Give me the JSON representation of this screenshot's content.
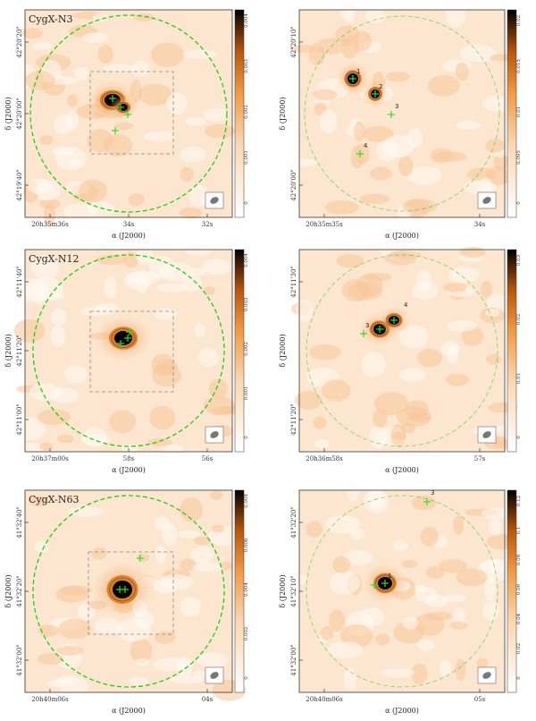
{
  "figure": {
    "panels": [
      {
        "id": "n3-left",
        "title": "CygX-N3",
        "ylabel": "δ (J2000)",
        "xlabel": "α (J2000)",
        "xticks": [
          "20h35m36s",
          "34s",
          "32s"
        ],
        "yticks": [
          "42°20'20\"",
          "42°20'00\"",
          "42°19'40\""
        ],
        "cbar_ticks": [
          "0.004",
          "0.003",
          "0.002",
          "0.001",
          "0"
        ],
        "sources": [],
        "has_box": true,
        "circle_style": "bold"
      },
      {
        "id": "n3-right",
        "title": "",
        "ylabel": "δ (J2000)",
        "xlabel": "α (J2000)",
        "xticks": [
          "20h35m35s",
          "34s"
        ],
        "yticks": [
          "42°20'10\"",
          "42°20'00\""
        ],
        "cbar_ticks": [
          "0.02",
          "0.015",
          "0.01",
          "0.005",
          "0"
        ],
        "sources": [
          "1",
          "2",
          "3",
          "4"
        ],
        "has_box": false,
        "circle_style": "light"
      },
      {
        "id": "n12-left",
        "title": "CygX-N12",
        "ylabel": "δ (J2000)",
        "xlabel": "α (J2000)",
        "xticks": [
          "20h37m00s",
          "58s",
          "56s"
        ],
        "yticks": [
          "42°11'40\"",
          "42°11'20\"",
          "42°11'00\""
        ],
        "cbar_ticks": [
          "0.004",
          "0.003",
          "0.002",
          "0.001",
          "0"
        ],
        "sources": [],
        "has_box": true,
        "circle_style": "bold"
      },
      {
        "id": "n12-right",
        "title": "",
        "ylabel": "δ (J2000)",
        "xlabel": "α (J2000)",
        "xticks": [
          "20h36m58s",
          "57s"
        ],
        "yticks": [
          "42°11'30\"",
          "42°11'20\""
        ],
        "cbar_ticks": [
          "0.03",
          "0.02",
          "0.01",
          "0"
        ],
        "sources": [
          "3",
          "4"
        ],
        "has_box": false,
        "circle_style": "light"
      },
      {
        "id": "n63-left",
        "title": "CygX-N63",
        "ylabel": "δ (J2000)",
        "xlabel": "α (J2000)",
        "xticks": [
          "20h40m06s",
          "04s"
        ],
        "yticks": [
          "41°32'40\"",
          "41°32'20\"",
          "41°32'00\""
        ],
        "cbar_ticks": [
          "0.008",
          "0.006",
          "0.004",
          "0.002",
          "0"
        ],
        "sources": [],
        "has_box": true,
        "circle_style": "bold"
      },
      {
        "id": "n63-right",
        "title": "",
        "ylabel": "δ (J2000)",
        "xlabel": "α (J2000)",
        "xticks": [
          "20h40m06s",
          "05s"
        ],
        "yticks": [
          "41°32'20\"",
          "41°32'10\"",
          "41°32'00\""
        ],
        "cbar_ticks": [
          "0.12",
          "0.1",
          "0.08",
          "0.06",
          "0.04",
          "0.02",
          "0"
        ],
        "sources": [
          "1",
          "3"
        ],
        "has_box": false,
        "circle_style": "light"
      }
    ],
    "colors": {
      "background": "#fde6cf",
      "light_patch": "#fffaf4",
      "mid": "#f7c79a",
      "peak": "#d9730f",
      "core": "#000000",
      "marker": "#33dd22",
      "circle": "#22cc11",
      "box": "#888888"
    }
  }
}
